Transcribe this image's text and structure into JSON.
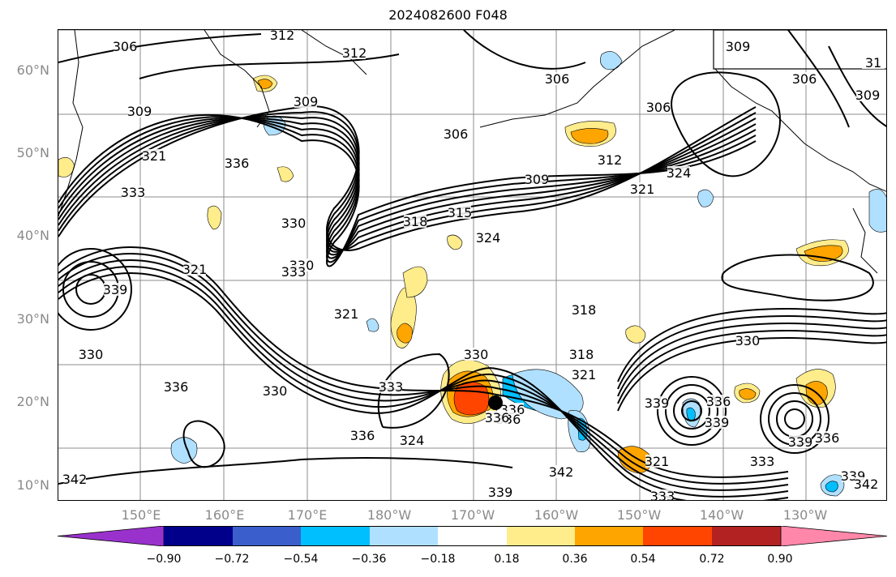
{
  "title": "2024082600 F048",
  "lat_labels": [
    "60°N",
    "50°N",
    "40°N",
    "30°N",
    "20°N",
    "10°N"
  ],
  "lon_labels": [
    "150°E",
    "160°E",
    "170°E",
    "180°W",
    "170°W",
    "160°W",
    "150°W",
    "140°W",
    "130°W"
  ],
  "colorbar": {
    "ticks": [
      "−0.90",
      "−0.72",
      "−0.54",
      "−0.36",
      "−0.18",
      "0.18",
      "0.36",
      "0.54",
      "0.72",
      "0.90"
    ],
    "colors": [
      "#9932cc",
      "#00008b",
      "#3a5fcd",
      "#00bfff",
      "#b0e0ff",
      "#ffffff",
      "#ffec8b",
      "#ffa500",
      "#ff4500",
      "#b22222",
      "#ff88aa"
    ]
  },
  "contour_labels": [
    "306",
    "312",
    "312",
    "306",
    "309",
    "309",
    "306",
    "306",
    "309",
    "306",
    "31",
    "309",
    "321",
    "336",
    "333",
    "330",
    "318",
    "315",
    "309",
    "312",
    "324",
    "321",
    "324",
    "330",
    "333",
    "321",
    "339",
    "321",
    "318",
    "321",
    "330",
    "330",
    "333",
    "324",
    "336",
    "330",
    "336",
    "330",
    "339",
    "336",
    "339",
    "336",
    "339",
    "333",
    "321",
    "342",
    "339",
    "333",
    "339",
    "342",
    "342",
    "318",
    "336",
    "336",
    "336"
  ],
  "colors": {
    "contour": "#000000",
    "grid": "#8c8c8c",
    "axis_text": "#8a8a8a",
    "center_marker": "#000000"
  }
}
